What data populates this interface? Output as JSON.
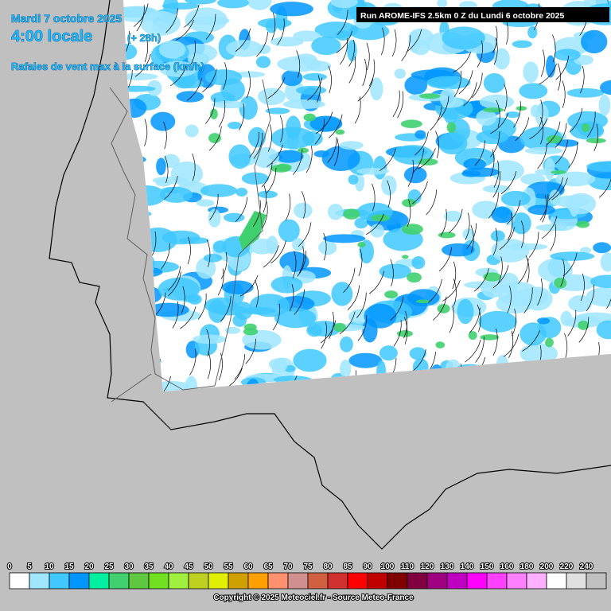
{
  "header": {
    "date": "Mardi 7 octobre 2025",
    "time": "4:00 locale",
    "lead": "(+ 28h)",
    "parameter": "Rafales de vent max à la surface (km/h)",
    "run": "Run AROME-IFS 2.5km 0 Z du Lundi 6 octobre 2025"
  },
  "legend": {
    "labels": [
      0,
      5,
      10,
      15,
      20,
      25,
      30,
      35,
      40,
      45,
      50,
      55,
      60,
      65,
      70,
      75,
      80,
      85,
      90,
      100,
      110,
      120,
      130,
      140,
      150,
      160,
      180,
      200,
      220,
      240
    ],
    "colors": [
      "#ffffff",
      "#a0e6ff",
      "#40c8ff",
      "#0096ff",
      "#00f0a0",
      "#40d070",
      "#60c840",
      "#70e020",
      "#a0f040",
      "#c0d020",
      "#e0f000",
      "#d0a000",
      "#ffa000",
      "#ff9070",
      "#d09090",
      "#d06040",
      "#d03030",
      "#ff0000",
      "#c00000",
      "#800000",
      "#800040",
      "#a00080",
      "#c000c0",
      "#ff00ff",
      "#ff40ff",
      "#ff80ff",
      "#ffb0ff",
      "#ffffff",
      "#e0e0e0",
      "#c0c0c0"
    ]
  },
  "footer": {
    "copyright": "Copyright © 2025 Meteociel.fr - Source Meteo-France"
  }
}
